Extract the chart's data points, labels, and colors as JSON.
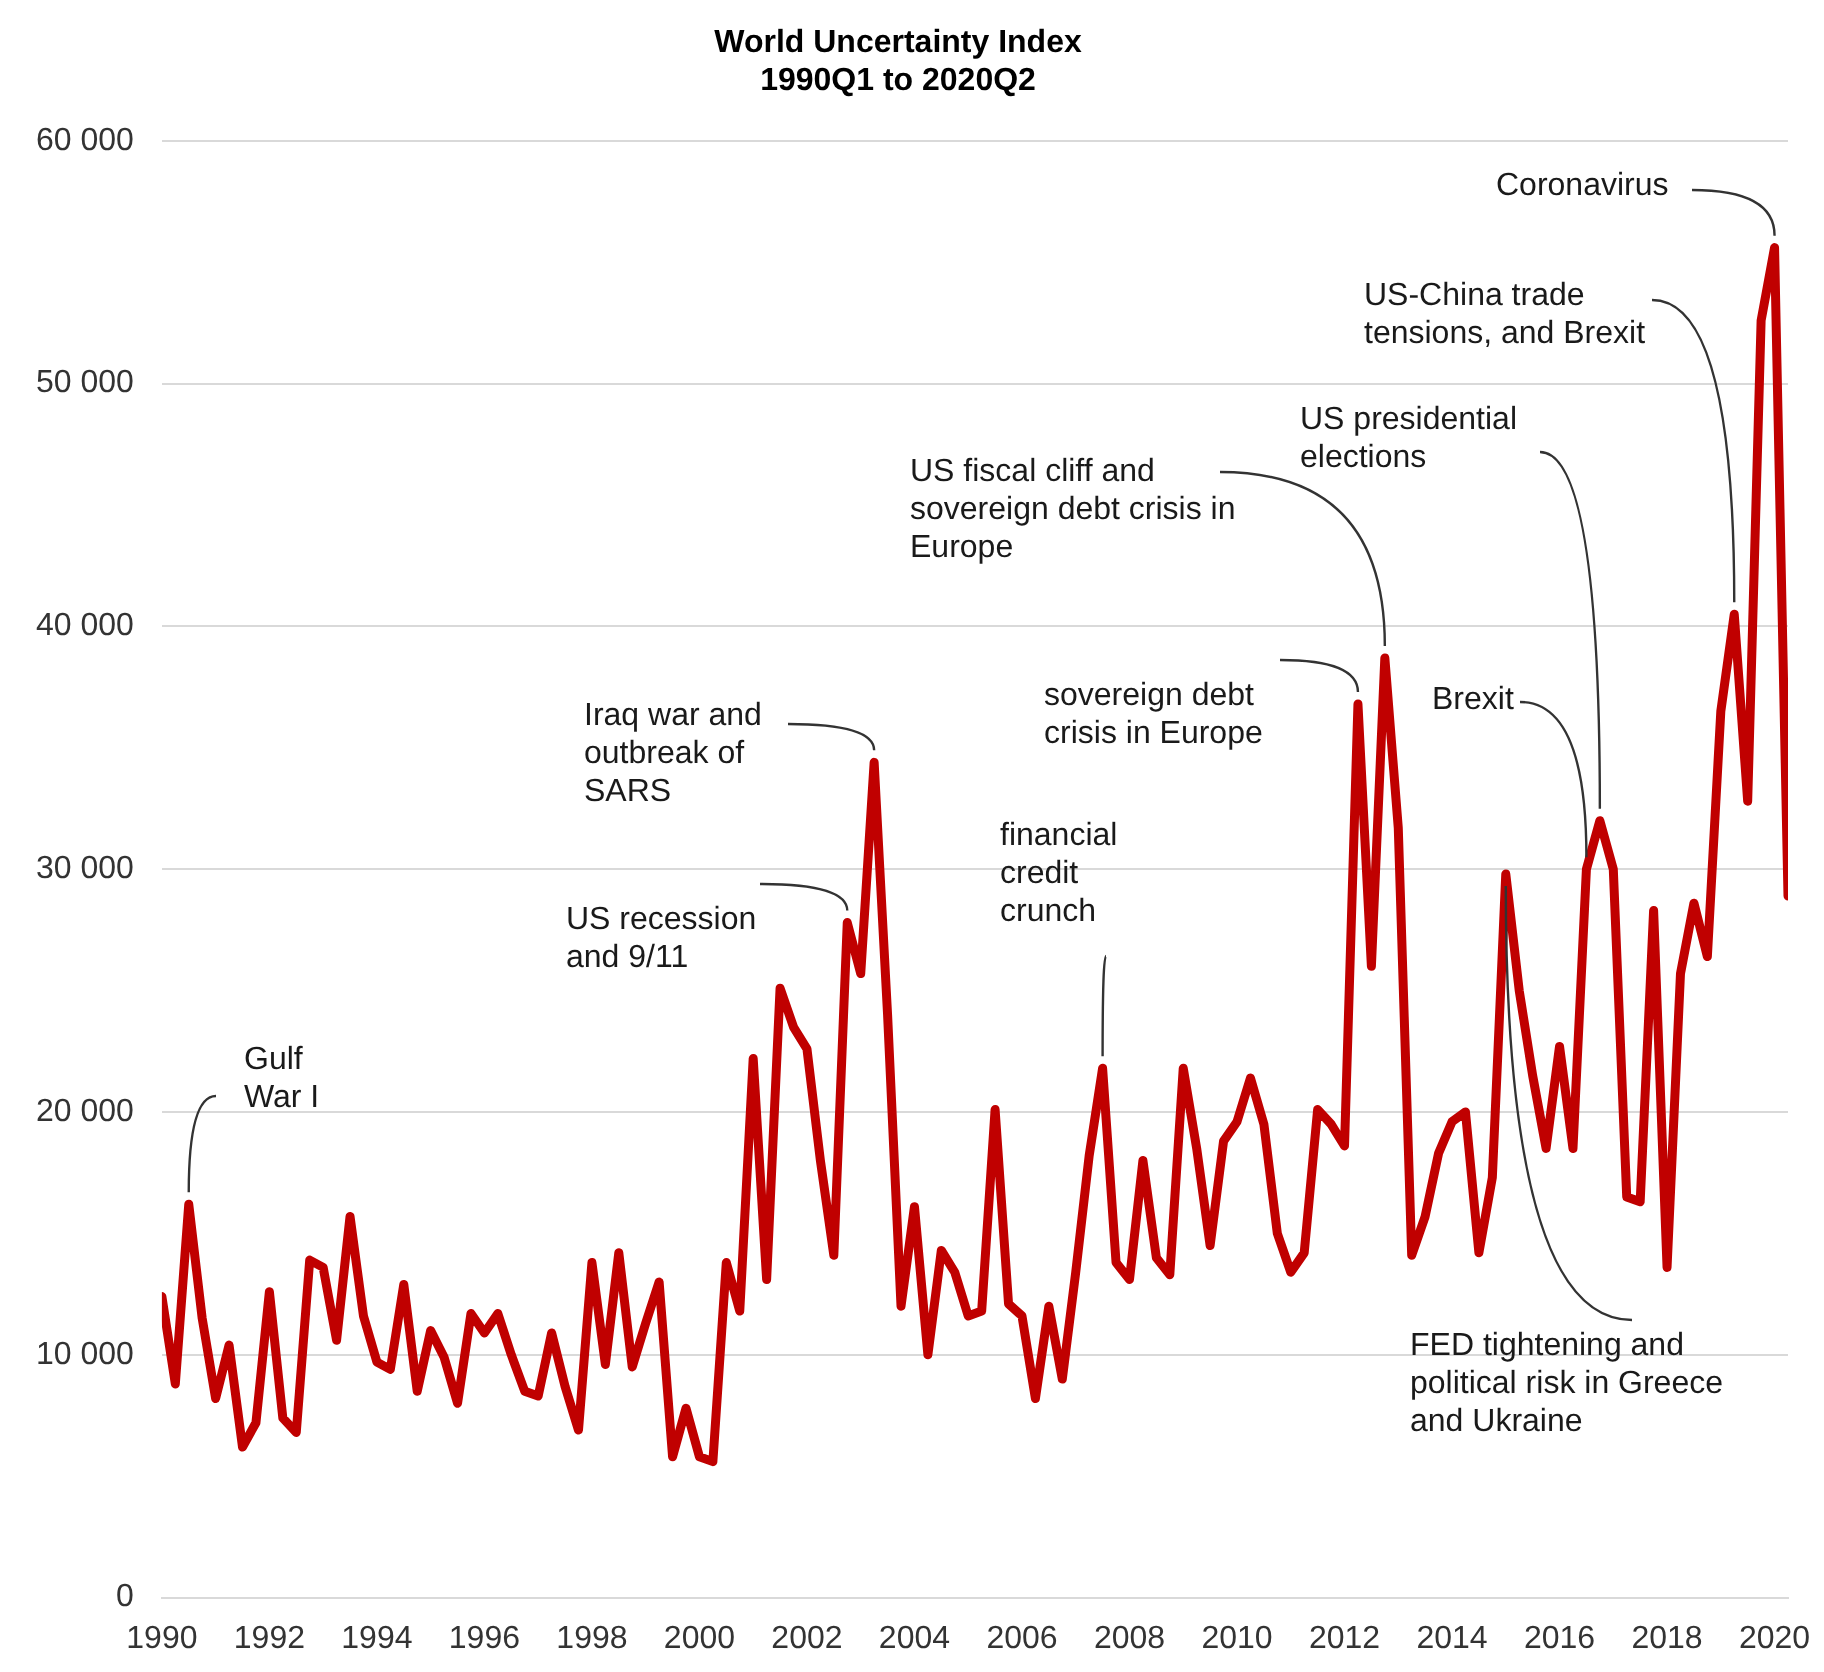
{
  "chart_data": {
    "type": "line",
    "title": "World Uncertainty Index\n1990Q1 to 2020Q2",
    "x": [
      1990,
      1990.25,
      1990.5,
      1990.75,
      1991,
      1991.25,
      1991.5,
      1991.75,
      1992,
      1992.25,
      1992.5,
      1992.75,
      1993,
      1993.25,
      1993.5,
      1993.75,
      1994,
      1994.25,
      1994.5,
      1994.75,
      1995,
      1995.25,
      1995.5,
      1995.75,
      1996,
      1996.25,
      1996.5,
      1996.75,
      1997,
      1997.25,
      1997.5,
      1997.75,
      1998,
      1998.25,
      1998.5,
      1998.75,
      1999,
      1999.25,
      1999.5,
      1999.75,
      2000,
      2000.25,
      2000.5,
      2000.75,
      2001,
      2001.25,
      2001.5,
      2001.75,
      2002,
      2002.25,
      2002.5,
      2002.75,
      2003,
      2003.25,
      2003.5,
      2003.75,
      2004,
      2004.25,
      2004.5,
      2004.75,
      2005,
      2005.25,
      2005.5,
      2005.75,
      2006,
      2006.25,
      2006.5,
      2006.75,
      2007,
      2007.25,
      2007.5,
      2007.75,
      2008,
      2008.25,
      2008.5,
      2008.75,
      2009,
      2009.25,
      2009.5,
      2009.75,
      2010,
      2010.25,
      2010.5,
      2010.75,
      2011,
      2011.25,
      2011.5,
      2011.75,
      2012,
      2012.25,
      2012.5,
      2012.75,
      2013,
      2013.25,
      2013.5,
      2013.75,
      2014,
      2014.25,
      2014.5,
      2014.75,
      2015,
      2015.25,
      2015.5,
      2015.75,
      2016,
      2016.25,
      2016.5,
      2016.75,
      2017,
      2017.25,
      2017.5,
      2017.75,
      2018,
      2018.25,
      2018.5,
      2018.75,
      2019,
      2019.25,
      2019.5,
      2019.75,
      2020,
      2020.25
    ],
    "series": [
      {
        "color": "#c00000",
        "values": [
          12400,
          8800,
          16200,
          11500,
          8200,
          10400,
          6200,
          7200,
          12600,
          7400,
          6800,
          13900,
          13600,
          10600,
          15700,
          11600,
          9700,
          9400,
          12900,
          8500,
          11000,
          9900,
          8000,
          11700,
          10900,
          11700,
          10000,
          8500,
          8300,
          10900,
          8700,
          6900,
          13800,
          9600,
          14200,
          9500,
          11300,
          13000,
          5800,
          7800,
          5800,
          5600,
          13800,
          11800,
          22200,
          13100,
          25100,
          23500,
          22600,
          18000,
          14100,
          27800,
          25700,
          34400,
          24000,
          12000,
          16100,
          10000,
          14300,
          13400,
          11600,
          11800,
          20100,
          12100,
          11600,
          8200,
          12000,
          9000,
          13400,
          18200,
          21800,
          13800,
          13100,
          18000,
          14000,
          13300,
          21800,
          18500,
          14500,
          18800,
          19600,
          21400,
          19500,
          15000,
          13400,
          14200,
          20100,
          19500,
          18600,
          36800,
          26000,
          38700,
          31700,
          14100,
          15700,
          18300,
          19600,
          20000,
          14200,
          17300,
          29800,
          25000,
          21500,
          18500,
          22700,
          18500,
          30000,
          32000,
          30000,
          16500,
          16300,
          28300,
          13600,
          25700,
          28600,
          26400,
          36500,
          40500,
          32800,
          52600,
          55600,
          28900
        ]
      }
    ],
    "xlim": [
      1990,
      2020.25
    ],
    "xticks": [
      1990,
      1992,
      1994,
      1996,
      1998,
      2000,
      2002,
      2004,
      2006,
      2008,
      2010,
      2012,
      2014,
      2016,
      2018,
      2020
    ],
    "ylim": [
      0,
      60000
    ],
    "yticks": [
      0,
      {
        "value": 10000,
        "label": "10 000"
      },
      {
        "value": 20000,
        "label": "20 000"
      },
      {
        "value": 30000,
        "label": "30 000"
      },
      {
        "value": 40000,
        "label": "40 000"
      },
      {
        "value": 50000,
        "label": "50 000"
      },
      {
        "value": 60000,
        "label": "60 000"
      }
    ],
    "grid": "y",
    "legend": false,
    "marker": "none",
    "line_style": "solid",
    "annotations": [
      {
        "text": "Gulf\nWar I",
        "x": 1990.5,
        "y": 16200
      },
      {
        "text": "Iraq war and\noutbreak of\nSARS",
        "x": 2003.25,
        "y": 34400
      },
      {
        "text": "US recession\nand 9/11",
        "x": 2002.75,
        "y": 27800
      },
      {
        "text": "financial\ncredit\ncrunch",
        "x": 2007.5,
        "y": 21800
      },
      {
        "text": "sovereign debt\ncrisis in Europe",
        "x": 2012.25,
        "y": 36800
      },
      {
        "text": "US fiscal cliff and\nsovereign debt crisis in\nEurope",
        "x": 2012.75,
        "y": 38700
      },
      {
        "text": "US presidential\nelections",
        "x": 2016.75,
        "y": 32000
      },
      {
        "text": "Brexit",
        "x": 2016.5,
        "y": 30000
      },
      {
        "text": "US-China trade\ntensions, and Brexit",
        "x": 2019.25,
        "y": 40500
      },
      {
        "text": "Coronavirus",
        "x": 2020,
        "y": 55600
      },
      {
        "text": "FED tightening and\npolitical risk in Greece\nand Ukraine",
        "x": 2015,
        "y": 29800
      }
    ]
  }
}
